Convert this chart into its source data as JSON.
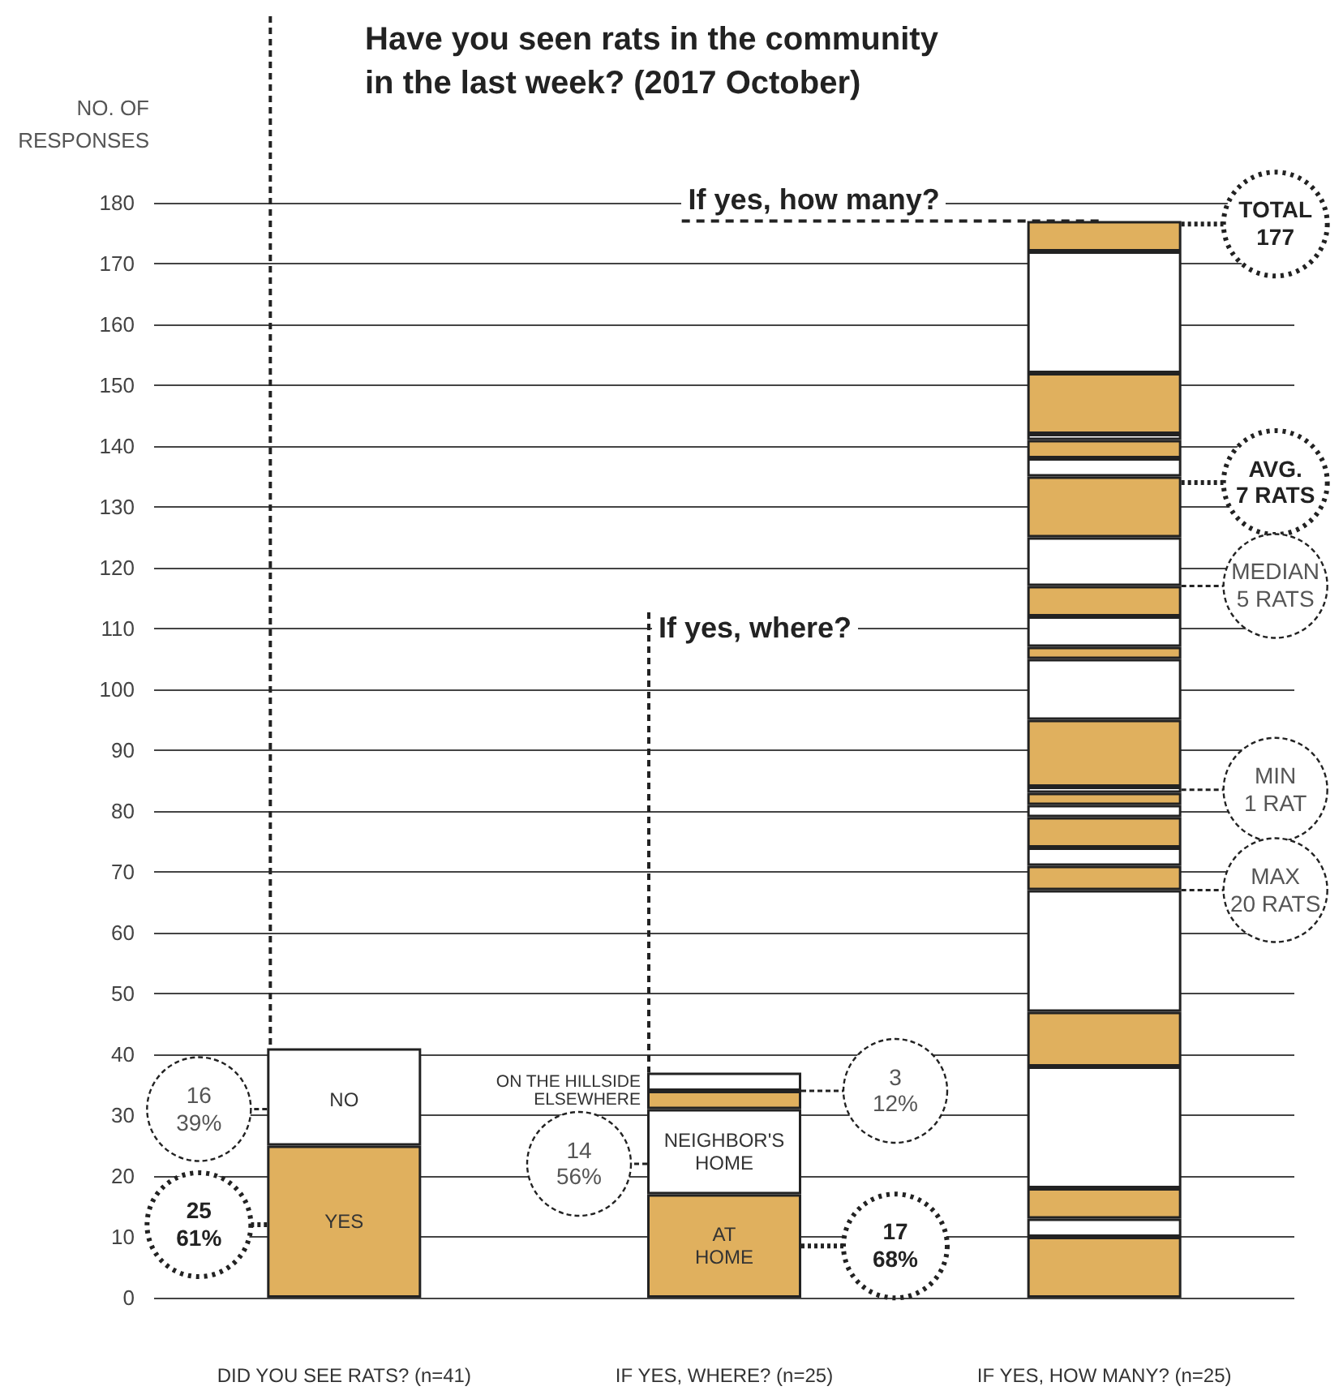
{
  "chart_data": {
    "type": "bar",
    "stacked": true,
    "title": "Have you seen rats in the community in the last week? (2017 October)",
    "ylabel": "NO. OF RESPONSES",
    "categories": [
      "DID YOU SEE RATS? (n=41)",
      "IF YES, WHERE? (n=25)",
      "IF YES, HOW MANY? (n=25)"
    ],
    "ylim": [
      0,
      180
    ],
    "yticks": [
      0,
      10,
      20,
      30,
      40,
      50,
      60,
      70,
      80,
      90,
      100,
      110,
      120,
      130,
      140,
      150,
      160,
      170,
      180
    ],
    "grid": "y",
    "series": [
      {
        "color": "#e0b05e",
        "values": [
          25,
          17,
          10
        ]
      },
      {
        "color": "#ffffff",
        "values": [
          16,
          14,
          3
        ]
      },
      {
        "color": "#e0b05e",
        "values": [
          null,
          3,
          5
        ]
      },
      {
        "color": "#ffffff",
        "values": [
          null,
          3,
          20
        ]
      },
      {
        "color": "#e0b05e",
        "values": [
          null,
          null,
          9
        ]
      },
      {
        "color": "#ffffff",
        "values": [
          null,
          null,
          20
        ]
      },
      {
        "color": "#e0b05e",
        "values": [
          null,
          null,
          4
        ]
      },
      {
        "color": "#ffffff",
        "values": [
          null,
          null,
          3
        ]
      },
      {
        "color": "#e0b05e",
        "values": [
          null,
          null,
          5
        ]
      },
      {
        "color": "#ffffff",
        "values": [
          null,
          null,
          2
        ]
      },
      {
        "color": "#e0b05e",
        "values": [
          null,
          null,
          2
        ]
      },
      {
        "color": "#ffffff",
        "values": [
          null,
          null,
          1
        ]
      },
      {
        "color": "#e0b05e",
        "values": [
          null,
          null,
          11
        ]
      },
      {
        "color": "#ffffff",
        "values": [
          null,
          null,
          10
        ]
      },
      {
        "color": "#e0b05e",
        "values": [
          null,
          null,
          2
        ]
      },
      {
        "color": "#ffffff",
        "values": [
          null,
          null,
          5
        ]
      },
      {
        "color": "#e0b05e",
        "values": [
          null,
          null,
          5
        ]
      },
      {
        "color": "#ffffff",
        "values": [
          null,
          null,
          8
        ]
      },
      {
        "color": "#e0b05e",
        "values": [
          null,
          null,
          10
        ]
      },
      {
        "color": "#ffffff",
        "values": [
          null,
          null,
          3
        ]
      },
      {
        "color": "#e0b05e",
        "values": [
          null,
          null,
          3
        ]
      },
      {
        "color": "#ffffff",
        "values": [
          null,
          null,
          1
        ]
      },
      {
        "color": "#e0b05e",
        "values": [
          null,
          null,
          10
        ]
      },
      {
        "color": "#ffffff",
        "values": [
          null,
          null,
          20
        ]
      },
      {
        "color": "#e0b05e",
        "values": [
          null,
          null,
          5
        ]
      }
    ],
    "annotations": [
      "YES",
      "NO",
      "AT HOME",
      "NEIGHBOR'S HOME",
      "ELSEWHERE",
      "ON THE HILLSIDE",
      "16 39%",
      "25 61%",
      "14 56%",
      "3 12%",
      "17 68%",
      "TOTAL 177",
      "AVG. 7 RATS",
      "MEDIAN 5 RATS",
      "MIN 1 RAT",
      "MAX 20 RATS",
      "If yes, where?",
      {
        "text": "If yes, how many?",
        "x": "IF YES, HOW MANY? (n=25)",
        "y": 177
      }
    ]
  }
}
